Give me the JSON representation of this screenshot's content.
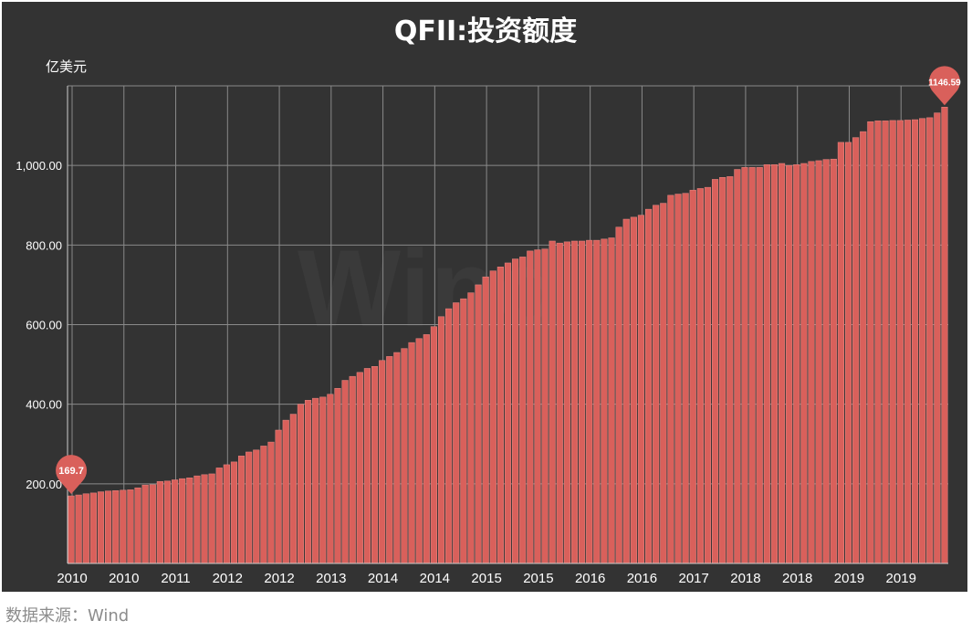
{
  "title": "QFII:投资额度",
  "source_note": "数据来源：Wind",
  "watermark": "Wind",
  "colors": {
    "background": "#333333",
    "bar": "#d9605b",
    "bar_edge": "#ec8a85",
    "grid": "#8a8a8a",
    "text": "#ffffff",
    "source_text": "#8c8c8c",
    "marker": "#d9605b"
  },
  "chart_data": {
    "type": "bar",
    "title": "QFII:投资额度",
    "ylabel": "亿美元",
    "ylim": [
      0,
      1200
    ],
    "ytick_values": [
      200,
      400,
      600,
      800,
      1000
    ],
    "ytick_labels": [
      "200.00",
      "400.00",
      "600.00",
      "800.00",
      "1,000.00"
    ],
    "xtick_labels": [
      "2010",
      "2010",
      "2011",
      "2012",
      "2012",
      "2013",
      "2014",
      "2014",
      "2015",
      "2015",
      "2016",
      "2016",
      "2017",
      "2018",
      "2018",
      "2019",
      "2019"
    ],
    "grid": true,
    "series_count": 119,
    "values": [
      169.7,
      172,
      175,
      177,
      180,
      182,
      183,
      184,
      185,
      190,
      197,
      198,
      206,
      207,
      210,
      213,
      215,
      220,
      223,
      225,
      240,
      248,
      255,
      270,
      280,
      285,
      295,
      305,
      335,
      360,
      375,
      400,
      410,
      415,
      418,
      425,
      440,
      460,
      470,
      480,
      490,
      495,
      510,
      520,
      530,
      540,
      555,
      565,
      575,
      595,
      620,
      640,
      655,
      665,
      680,
      700,
      720,
      735,
      745,
      755,
      765,
      770,
      785,
      788,
      790,
      810,
      805,
      808,
      810,
      810,
      812,
      812,
      815,
      818,
      845,
      865,
      870,
      875,
      890,
      900,
      905,
      925,
      928,
      930,
      938,
      942,
      945,
      965,
      970,
      972,
      990,
      995,
      995,
      995,
      1002,
      1002,
      1005,
      1000,
      1002,
      1005,
      1010,
      1012,
      1015,
      1016,
      1058,
      1058,
      1070,
      1085,
      1110,
      1112,
      1112,
      1113,
      1113,
      1114,
      1115,
      1118,
      1120,
      1132,
      1146.59
    ],
    "annotations": [
      {
        "index": 0,
        "label": "169.7"
      },
      {
        "index": 118,
        "label": "1146.59"
      }
    ]
  }
}
